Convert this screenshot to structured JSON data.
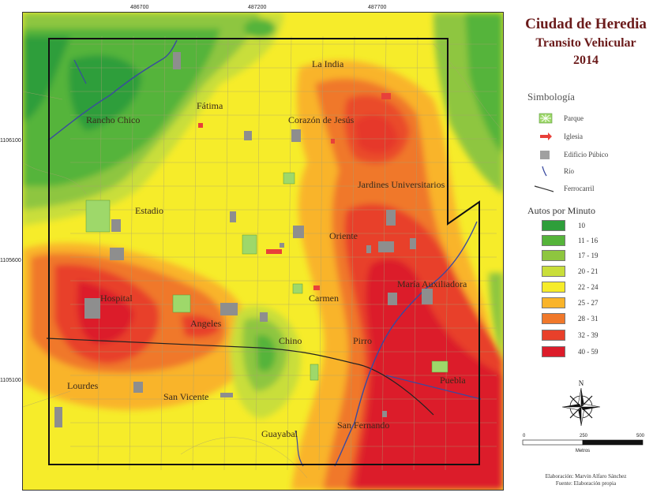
{
  "map": {
    "coords_top": [
      "486700",
      "487200",
      "487700"
    ],
    "coords_left": [
      "1106100",
      "1105600",
      "1105100"
    ],
    "places": [
      {
        "name": "La India"
      },
      {
        "name": "Fátima"
      },
      {
        "name": "Rancho Chico"
      },
      {
        "name": "Corazón de Jesús"
      },
      {
        "name": "Jardines Universitarios"
      },
      {
        "name": "Estadio"
      },
      {
        "name": "Oriente"
      },
      {
        "name": "María Auxiliadora"
      },
      {
        "name": "Hospital"
      },
      {
        "name": "Carmen"
      },
      {
        "name": "Angeles"
      },
      {
        "name": "Chino"
      },
      {
        "name": "Pirro"
      },
      {
        "name": "Lourdes"
      },
      {
        "name": "San Vicente"
      },
      {
        "name": "Puebla"
      },
      {
        "name": "Guayabal"
      },
      {
        "name": "San Fernando"
      }
    ]
  },
  "title": {
    "line1": "Ciudad de Heredia",
    "line2": "Transito Vehicular",
    "line3": "2014"
  },
  "legend": {
    "symbology_title": "Simbología",
    "symbols": [
      {
        "label": "Parque",
        "icon": "park-icon",
        "color": "#7ec850"
      },
      {
        "label": "Iglesia",
        "icon": "church-icon",
        "color": "#e8403a"
      },
      {
        "label": "Edificio Púbico",
        "icon": "building-icon",
        "color": "#a0a0a0"
      },
      {
        "label": "Río",
        "icon": "river-icon",
        "color": "#3a4aa0"
      },
      {
        "label": "Ferrocarril",
        "icon": "railway-icon",
        "color": "#333333"
      }
    ],
    "classes_title": "Autos por Minuto",
    "classes": [
      {
        "label": "10",
        "color": "#2e9e3a"
      },
      {
        "label": "11 - 16",
        "color": "#55b43a"
      },
      {
        "label": "17 - 19",
        "color": "#8ec63f"
      },
      {
        "label": "20 - 21",
        "color": "#c9de3a"
      },
      {
        "label": "22 - 24",
        "color": "#f6ec2a"
      },
      {
        "label": "25 - 27",
        "color": "#f9b42a"
      },
      {
        "label": "28 - 31",
        "color": "#f0782a"
      },
      {
        "label": "32 - 39",
        "color": "#e8402a"
      },
      {
        "label": "40 - 59",
        "color": "#dc1c2a"
      }
    ]
  },
  "north": {
    "label": "N"
  },
  "scale": {
    "ticks": [
      "0",
      "250",
      "500"
    ],
    "units": "Metros"
  },
  "credits": {
    "line1": "Elaboración: Marvin Alfaro Sánchez",
    "line2": "Fuente: Elaboración propia"
  }
}
